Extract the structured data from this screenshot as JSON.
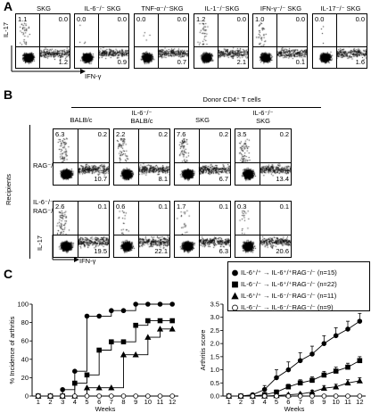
{
  "panelA": {
    "label": "A",
    "titles": [
      "SKG",
      "IL-6⁻/⁻ SKG",
      "TNF-α⁻/⁻SKG",
      "IL-1⁻/⁻SKG",
      "IFN-γ⁻/⁻ SKG",
      "IL-17⁻/⁻ SKG"
    ],
    "plots": [
      {
        "ul": "1.1",
        "ur": "0.0",
        "lr": "1.2"
      },
      {
        "ul": "0.0",
        "ur": "0.0",
        "lr": "0.9"
      },
      {
        "ul": "0.0",
        "ur": "0.0",
        "lr": "0.7"
      },
      {
        "ul": "1.2",
        "ur": "0.0",
        "lr": "2.1"
      },
      {
        "ul": "1.0",
        "ur": "0.0",
        "lr": "0.1"
      },
      {
        "ul": "0.0",
        "ur": "0.0",
        "lr": "1.6"
      }
    ],
    "y_axis": "IL-17",
    "x_axis": "IFN-γ"
  },
  "panelB": {
    "label": "B",
    "donor_header": "Donor CD4⁺ T cells",
    "columns": [
      "BALB/c",
      "IL-6⁻/⁻\nBALB/c",
      "SKG",
      "IL-6⁻/⁻\nSKG"
    ],
    "recipients_label": "Recipients",
    "rows": [
      "RAG⁻/⁻",
      "IL-6⁻/⁻\nRAG⁻/⁻"
    ],
    "plots": [
      [
        {
          "ul": "6.3",
          "ur": "0.2",
          "lr": "10.7"
        },
        {
          "ul": "2.2",
          "ur": "0.2",
          "lr": "8.1"
        },
        {
          "ul": "7.6",
          "ur": "0.2",
          "lr": "6.7"
        },
        {
          "ul": "3.5",
          "ur": "0.2",
          "lr": "13.4"
        }
      ],
      [
        {
          "ul": "2.6",
          "ur": "0.1",
          "lr": "19.5"
        },
        {
          "ul": "0.6",
          "ur": "0.1",
          "lr": "22.1"
        },
        {
          "ul": "1.7",
          "ur": "0.1",
          "lr": "6.3"
        },
        {
          "ul": "0.3",
          "ur": "0.1",
          "lr": "20.6"
        }
      ]
    ],
    "y_axis": "IL-17",
    "x_axis": "IFN-γ"
  },
  "panelC": {
    "label": "C",
    "legend": [
      {
        "marker": "circle-filled",
        "text": "IL-6⁺/⁺ → IL-6⁺/⁺RAG⁻/⁻ (n=15)"
      },
      {
        "marker": "square-filled",
        "text": "IL-6⁻/⁻ → IL-6⁺/⁺RAG⁻/⁻ (n=22)"
      },
      {
        "marker": "triangle-filled",
        "text": "IL-6⁺/⁺ → IL-6⁻/⁻RAG⁻/⁻ (n=11)"
      },
      {
        "marker": "circle-open",
        "text": "IL-6⁻/⁻ → IL-6⁻/⁻RAG⁻/⁻ (n=9)"
      }
    ]
  },
  "chart_data": [
    {
      "type": "line",
      "ylabel": "% Incidence of arthritis",
      "xlabel": "Weeks",
      "x": [
        1,
        2,
        3,
        4,
        5,
        6,
        7,
        8,
        9,
        10,
        11,
        12
      ],
      "ylim": [
        0,
        100
      ],
      "yticks": [
        0,
        20,
        40,
        60,
        80,
        100
      ],
      "step": true,
      "series": [
        {
          "marker": "circle-filled",
          "values": [
            0,
            0,
            7,
            27,
            87,
            87,
            93,
            93,
            100,
            100,
            100,
            100
          ]
        },
        {
          "marker": "square-filled",
          "values": [
            0,
            0,
            0,
            14,
            23,
            50,
            59,
            59,
            77,
            82,
            82,
            82
          ]
        },
        {
          "marker": "triangle-filled",
          "values": [
            0,
            0,
            0,
            0,
            9,
            9,
            9,
            45,
            45,
            64,
            73,
            73
          ]
        },
        {
          "marker": "circle-open",
          "values": [
            0,
            0,
            0,
            0,
            0,
            0,
            0,
            0,
            0,
            0,
            0,
            0
          ]
        }
      ]
    },
    {
      "type": "line",
      "ylabel": "Arthritis score",
      "xlabel": "Weeks",
      "x": [
        1,
        2,
        3,
        4,
        5,
        6,
        7,
        8,
        9,
        10,
        11,
        12
      ],
      "ylim": [
        0,
        3.5
      ],
      "yticks": [
        0,
        0.5,
        1.0,
        1.5,
        2.0,
        2.5,
        3.0,
        3.5
      ],
      "series": [
        {
          "marker": "circle-filled",
          "values": [
            0,
            0,
            0.05,
            0.25,
            0.7,
            1.0,
            1.35,
            1.6,
            2.0,
            2.3,
            2.55,
            2.85
          ],
          "errors": [
            0,
            0,
            0.05,
            0.15,
            0.3,
            0.3,
            0.3,
            0.3,
            0.3,
            0.3,
            0.3,
            0.3
          ]
        },
        {
          "marker": "square-filled",
          "values": [
            0,
            0,
            0,
            0.05,
            0.15,
            0.35,
            0.5,
            0.6,
            0.8,
            0.95,
            1.1,
            1.35
          ],
          "errors": [
            0,
            0,
            0,
            0.03,
            0.08,
            0.1,
            0.12,
            0.13,
            0.14,
            0.15,
            0.15,
            0.15
          ]
        },
        {
          "marker": "triangle-filled",
          "values": [
            0,
            0,
            0,
            0,
            0.02,
            0.05,
            0.08,
            0.15,
            0.3,
            0.35,
            0.5,
            0.58
          ],
          "errors": [
            0,
            0,
            0,
            0,
            0.02,
            0.05,
            0.05,
            0.07,
            0.1,
            0.1,
            0.12,
            0.12
          ]
        },
        {
          "marker": "circle-open",
          "values": [
            0,
            0,
            0,
            0,
            0,
            0,
            0,
            0,
            0,
            0,
            0,
            0
          ],
          "errors": [
            0,
            0,
            0,
            0,
            0,
            0,
            0,
            0,
            0,
            0,
            0,
            0
          ]
        }
      ]
    }
  ]
}
